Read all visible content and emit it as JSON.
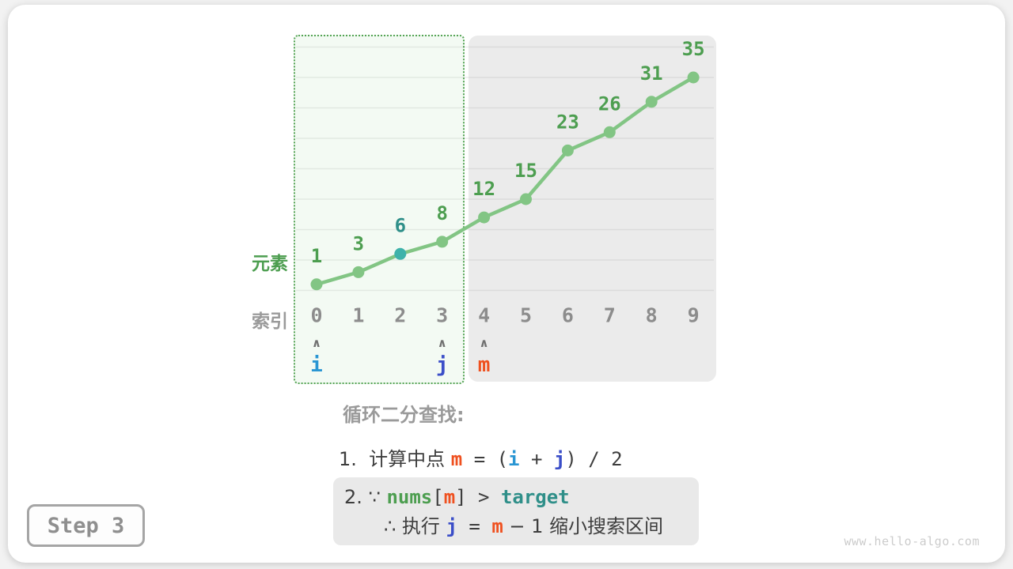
{
  "chart_data": {
    "type": "line",
    "x_label": "索引",
    "y_label": "元素",
    "indices": [
      0,
      1,
      2,
      3,
      4,
      5,
      6,
      7,
      8,
      9
    ],
    "values": [
      1,
      3,
      6,
      8,
      12,
      15,
      23,
      26,
      31,
      35
    ],
    "highlight_index": 2,
    "ylim": [
      0,
      40
    ],
    "grid_step": 5,
    "grid": "horizontal",
    "search_window": {
      "start_index": 0,
      "end_index": 3
    },
    "excluded_window": {
      "start_index": 4,
      "end_index": 9
    },
    "pointers": [
      {
        "label": "i",
        "index": 0,
        "color": "#2a96d3"
      },
      {
        "label": "j",
        "index": 3,
        "color": "#3b4ec8"
      },
      {
        "label": "m",
        "index": 4,
        "color": "#ef5120"
      }
    ]
  },
  "colors": {
    "line_green": "#82c584",
    "point_green": "#82c584",
    "point_teal": "#3eb2aa",
    "value_label_green": "#4d9e50",
    "value_label_teal": "#2f8f89",
    "index_gray": "#8c8c8c",
    "arrow_gray": "#707070",
    "orange": "#ef5120",
    "blue_i": "#2a96d3",
    "blue_j": "#3b4ec8",
    "search_border_green": "#55a455",
    "search_fill": "#f3faf3",
    "excluded_fill": "#ebebeb"
  },
  "annotation": {
    "heading": "循环二分查找:",
    "step1": {
      "prefix": "1.  计算中点 ",
      "m": "m",
      "eq": " = (",
      "i": "i",
      "plus": " + ",
      "j": "j",
      "suffix": ") / 2"
    },
    "step2": {
      "prefix": "2. ∵ ",
      "nums": "nums",
      "lbracket": "[",
      "m": "m",
      "rbracket": "] > ",
      "target": "target",
      "line2_prefix": "∴ 执行 ",
      "j": "j",
      "eq": " = ",
      "m2": "m",
      "suffix": " − 1 缩小搜索区间"
    }
  },
  "badge": {
    "label": "Step 3"
  },
  "watermark": "www.hello-algo.com"
}
